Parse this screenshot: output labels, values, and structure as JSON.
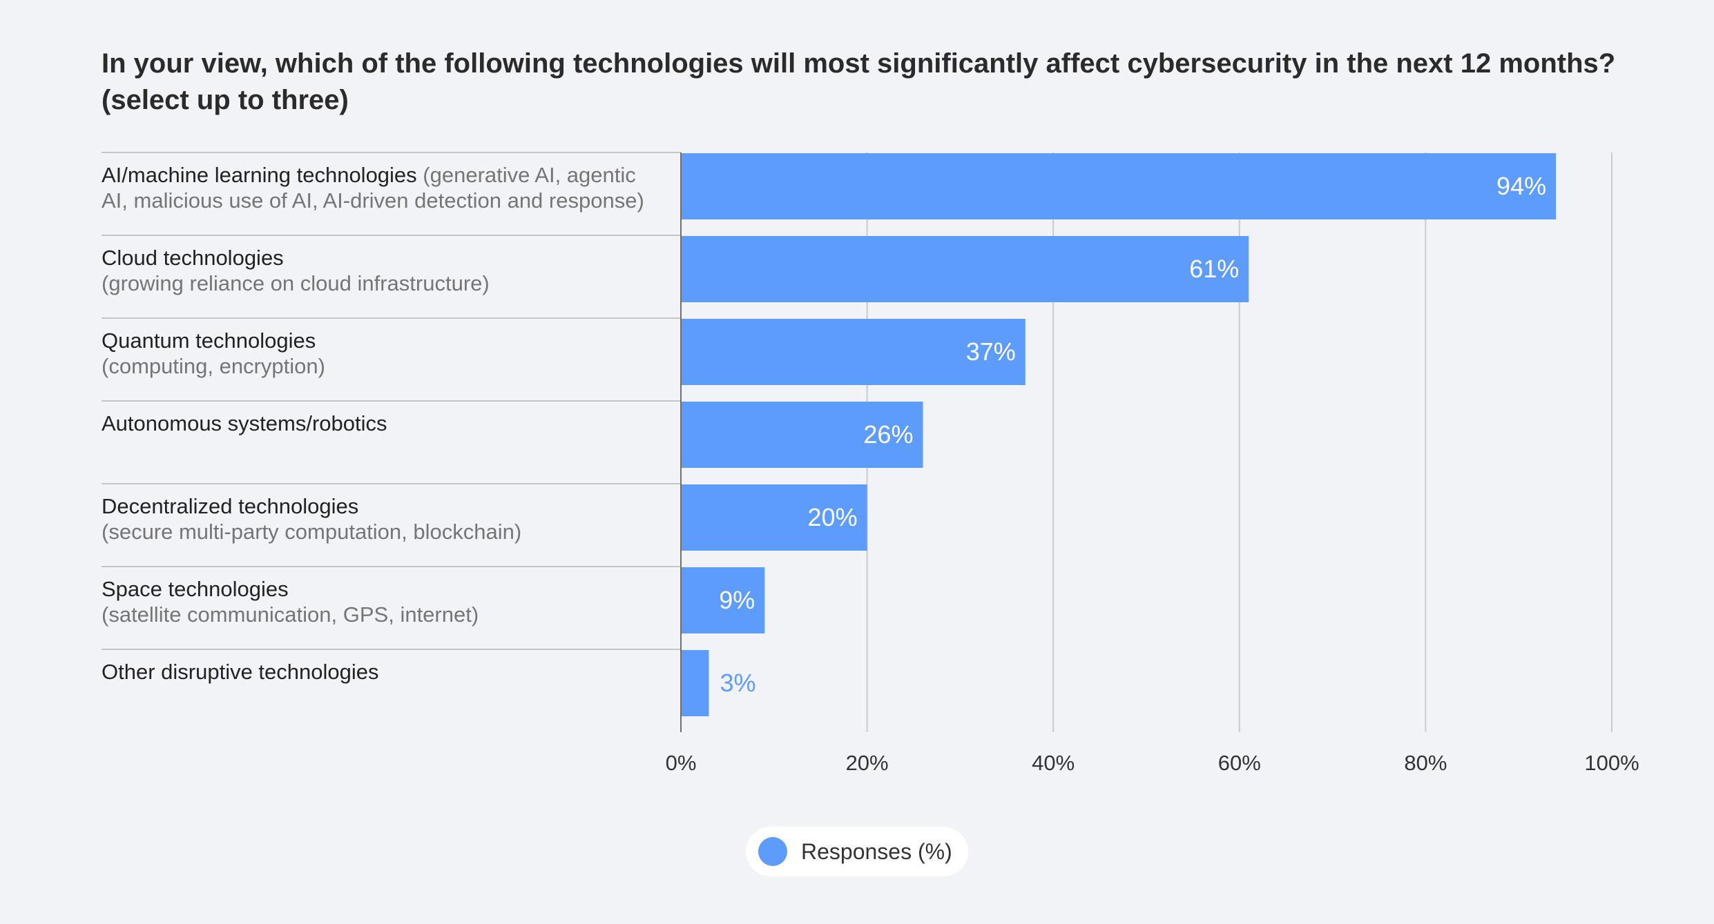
{
  "colors": {
    "bar": "#5e9cfc",
    "grid": "#c9cbd0",
    "axis": "#6f6f6f",
    "separator": "#b5b7bc",
    "label_inside": "#ffffff",
    "label_outside": "#5e9cfc"
  },
  "chart_data": {
    "type": "bar",
    "orientation": "horizontal",
    "title": "In your view, which of the following technologies will most significantly affect cybersecurity in the next 12 months? (select up to three)",
    "categories": [
      {
        "main": "AI/machine learning technologies",
        "sub": "(generative AI, agentic AI, malicious use of AI, AI-driven detection and response)"
      },
      {
        "main": "Cloud technologies",
        "sub": "(growing reliance on cloud infrastructure)"
      },
      {
        "main": "Quantum technologies",
        "sub": "(computing, encryption)"
      },
      {
        "main": "Autonomous systems/robotics",
        "sub": ""
      },
      {
        "main": "Decentralized technologies",
        "sub": "(secure multi-party computation, blockchain)"
      },
      {
        "main": "Space technologies",
        "sub": "(satellite communication, GPS, internet)"
      },
      {
        "main": "Other disruptive technologies",
        "sub": ""
      }
    ],
    "series": [
      {
        "name": "Responses (%)",
        "values": [
          94,
          61,
          37,
          26,
          20,
          9,
          3
        ],
        "labels": [
          "94%",
          "61%",
          "37%",
          "26%",
          "20%",
          "9%",
          "3%"
        ]
      }
    ],
    "xlim": [
      0,
      100
    ],
    "xticks": [
      0,
      20,
      40,
      60,
      80,
      100
    ],
    "xtick_labels": [
      "0%",
      "20%",
      "40%",
      "60%",
      "80%",
      "100%"
    ],
    "grid": true,
    "legend": {
      "position": "bottom-center",
      "label": "Responses (%)"
    }
  }
}
